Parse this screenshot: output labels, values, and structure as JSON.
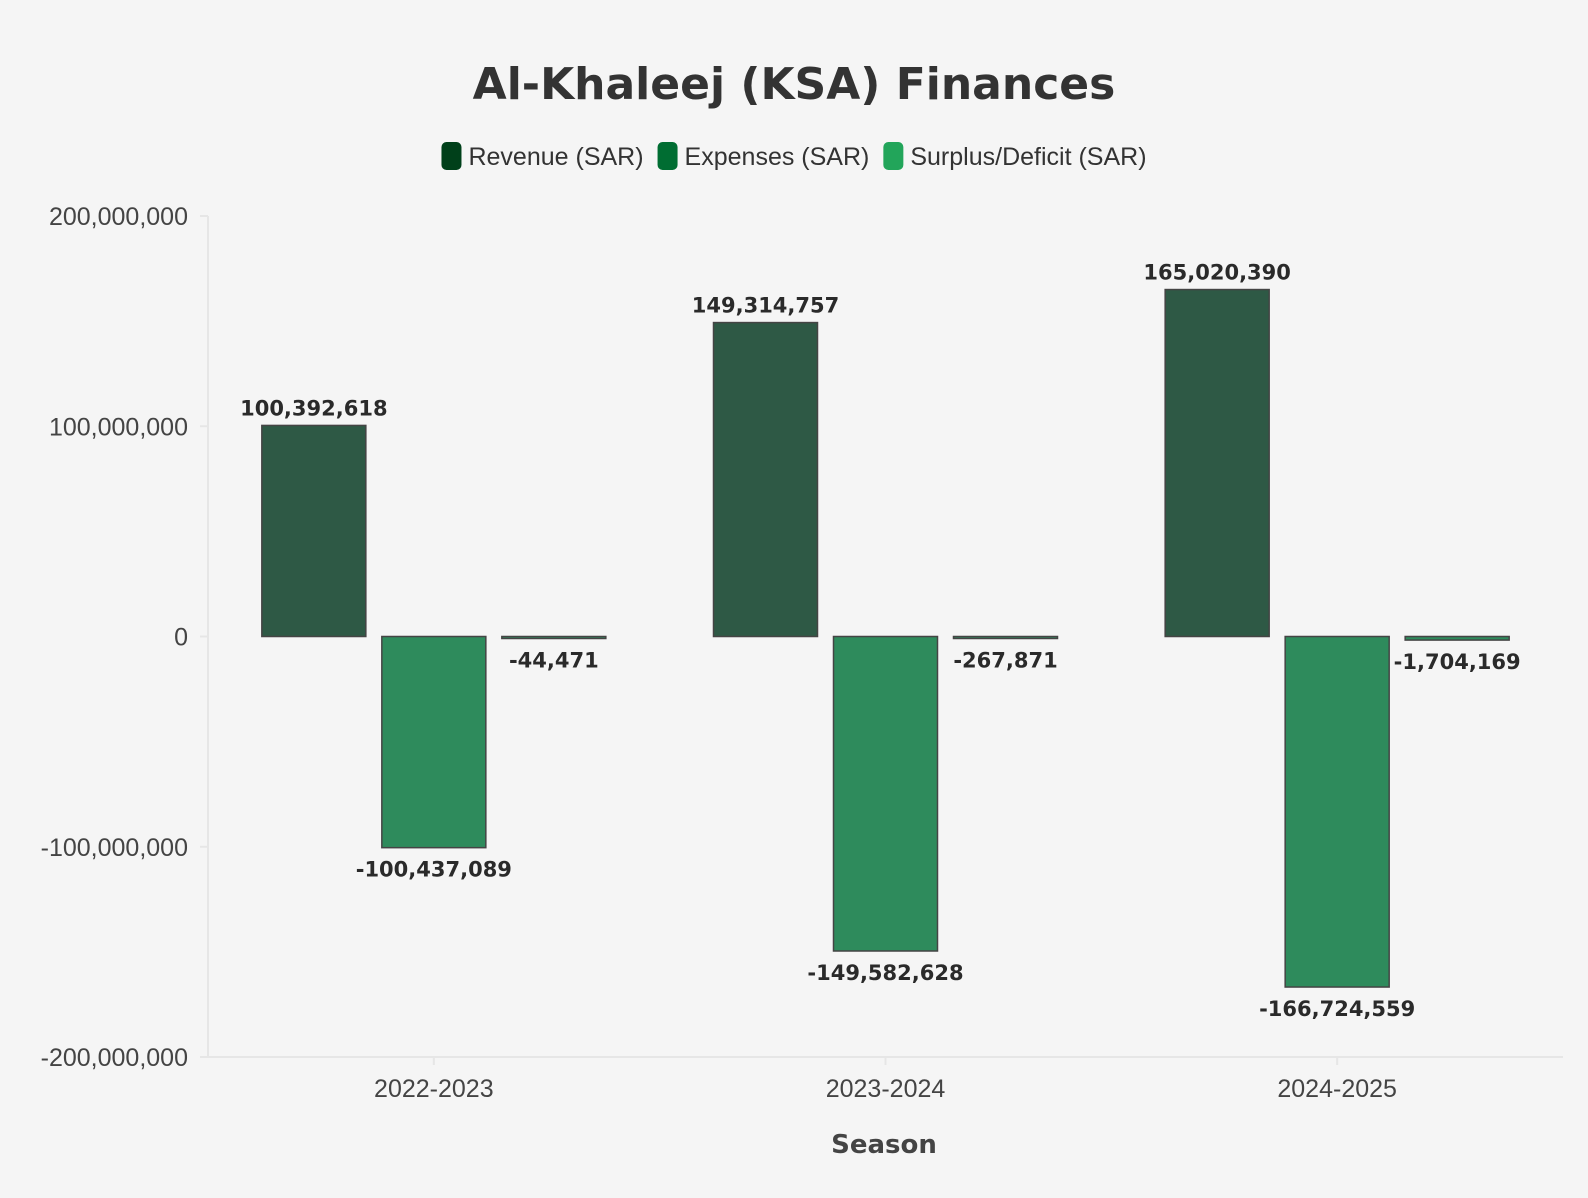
{
  "chart_data": {
    "type": "bar",
    "title": "Al-Khaleej (KSA) Finances",
    "xlabel": "Season",
    "ylabel": "",
    "categories": [
      "2022-2023",
      "2023-2024",
      "2024-2025"
    ],
    "series": [
      {
        "name": "Revenue (SAR)",
        "legend_color": "#00401a",
        "bar_color": "#2e5945",
        "values": [
          100392618,
          149314757,
          165020390
        ],
        "labels": [
          "100,392,618",
          "149,314,757",
          "165,020,390"
        ]
      },
      {
        "name": "Expenses (SAR)",
        "legend_color": "#006d32",
        "bar_color": "#2e8b5c",
        "values": [
          -100437089,
          -149582628,
          -166724559
        ],
        "labels": [
          "-100,437,089",
          "-149,582,628",
          "-166,724,559"
        ]
      },
      {
        "name": "Surplus/Deficit (SAR)",
        "legend_color": "#22a55a",
        "bar_color": "#2e8b5c",
        "values": [
          -44471,
          -267871,
          -1704169
        ],
        "labels": [
          "-44,471",
          "-267,871",
          "-1,704,169"
        ]
      }
    ],
    "ylim": [
      -200000000,
      200000000
    ],
    "yticks": [
      200000000,
      100000000,
      0,
      -100000000,
      -200000000
    ],
    "ytick_labels": [
      "200,000,000",
      "100,000,000",
      "0",
      "-100,000,000",
      "-200,000,000"
    ],
    "grid": false,
    "legend_position": "top-center",
    "bar_outline_color": "#444444",
    "background": "#f5f5f5"
  }
}
